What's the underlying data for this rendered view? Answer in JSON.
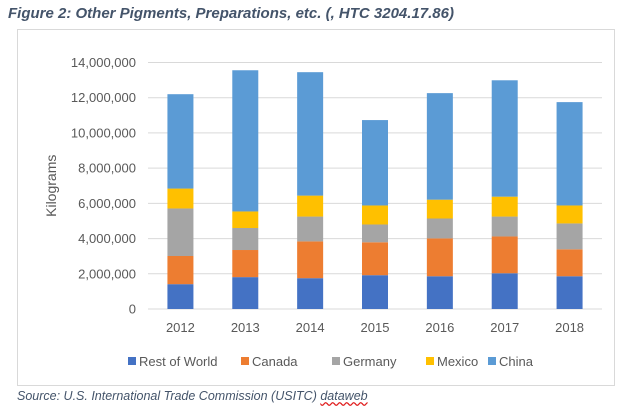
{
  "title": "Figure 2: Other Pigments, Preparations, etc. (, HTC 3204.17.86)",
  "source": {
    "prefix": "Source: U.S. International Trade Commission (USITC) ",
    "link": "dataweb"
  },
  "chart_data": {
    "type": "bar",
    "stacked": true,
    "title": "",
    "xlabel": "",
    "ylabel": "Kilograms",
    "ylim": [
      0,
      14000000
    ],
    "yticks": [
      "0",
      "2,000,000",
      "4,000,000",
      "6,000,000",
      "8,000,000",
      "10,000,000",
      "12,000,000",
      "14,000,000"
    ],
    "grid": true,
    "legend": "bottom",
    "categories": [
      "2012",
      "2013",
      "2014",
      "2015",
      "2016",
      "2017",
      "2018"
    ],
    "series": [
      {
        "name": "Rest of World",
        "color": "#4472C4",
        "values": [
          1410000,
          1810000,
          1750000,
          1920000,
          1860000,
          2030000,
          1860000
        ]
      },
      {
        "name": "Canada",
        "color": "#ED7D31",
        "values": [
          1600000,
          1540000,
          2090000,
          1870000,
          2150000,
          2090000,
          1530000
        ]
      },
      {
        "name": "Germany",
        "color": "#A5A5A5",
        "values": [
          2700000,
          1250000,
          1410000,
          1010000,
          1130000,
          1130000,
          1470000
        ]
      },
      {
        "name": "Mexico",
        "color": "#FFC000",
        "values": [
          1130000,
          940000,
          1190000,
          1080000,
          1070000,
          1130000,
          1020000
        ]
      },
      {
        "name": "China",
        "color": "#5B9BD5",
        "values": [
          5360000,
          8020000,
          7010000,
          4850000,
          6050000,
          6610000,
          5870000
        ]
      }
    ]
  }
}
